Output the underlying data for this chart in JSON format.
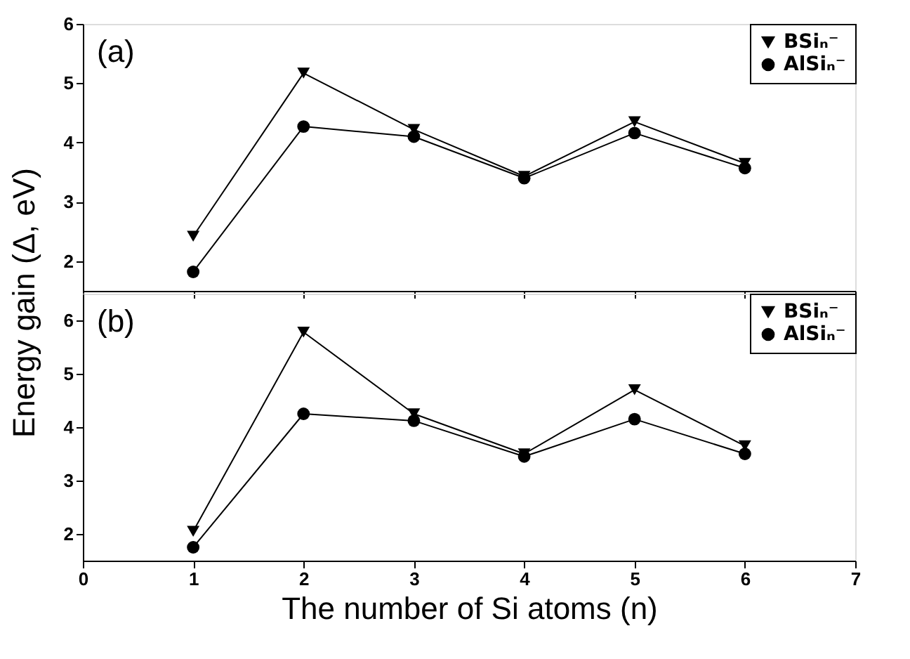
{
  "chart_data": [
    {
      "type": "line",
      "ylabel": "Energy gain  (Δ, eV)",
      "annotations": [
        "(a)"
      ],
      "x": [
        1,
        2,
        3,
        4,
        5,
        6
      ],
      "xlim": [
        0,
        7
      ],
      "xticks": [
        0,
        1,
        2,
        3,
        4,
        5,
        6,
        7
      ],
      "ylim": [
        1.5,
        6
      ],
      "yticks": [
        2,
        3,
        4,
        5,
        6
      ],
      "tick_labels": "y",
      "legend": "top right",
      "grid": false,
      "series": [
        {
          "name": "BSiₙ⁻",
          "color": "#000000",
          "marker": "triangle",
          "values": [
            2.42,
            5.17,
            4.22,
            3.43,
            4.35,
            3.65
          ]
        },
        {
          "name": "AlSiₙ⁻",
          "color": "#000000",
          "marker": "circle",
          "values": [
            1.82,
            4.27,
            4.1,
            3.4,
            4.16,
            3.57
          ]
        }
      ]
    },
    {
      "type": "line",
      "xlabel": "The number of Si atoms (n)",
      "annotations": [
        "(b)"
      ],
      "x": [
        1,
        2,
        3,
        4,
        5,
        6
      ],
      "xlim": [
        0,
        7
      ],
      "xticks": [
        0,
        1,
        2,
        3,
        4,
        5,
        6,
        7
      ],
      "ylim": [
        1.5,
        6.5
      ],
      "yticks": [
        2,
        3,
        4,
        5,
        6
      ],
      "legend": "top right",
      "grid": false,
      "series": [
        {
          "name": "BSiₙ⁻",
          "color": "#000000",
          "marker": "triangle",
          "values": [
            2.05,
            5.78,
            4.25,
            3.5,
            4.7,
            3.65
          ]
        },
        {
          "name": "AlSiₙ⁻",
          "color": "#000000",
          "marker": "circle",
          "values": [
            1.75,
            4.25,
            4.12,
            3.45,
            4.15,
            3.5
          ]
        }
      ]
    }
  ]
}
